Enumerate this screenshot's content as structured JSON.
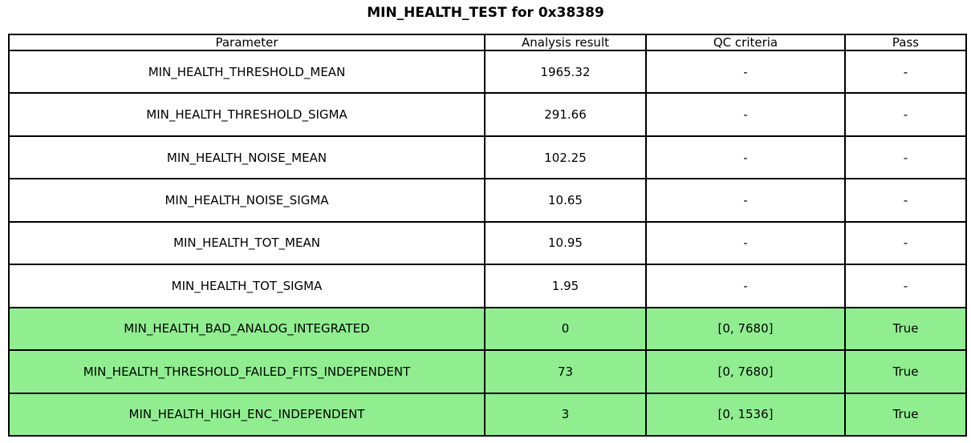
{
  "title": "MIN_HEALTH_TEST for 0x38389",
  "colors": {
    "pass_highlight": "#90EE90",
    "border": "#000000",
    "background": "#FFFFFF",
    "text": "#000000"
  },
  "chart_data": {
    "type": "table",
    "title": "MIN_HEALTH_TEST for 0x38389",
    "columns": [
      "Parameter",
      "Analysis result",
      "QC criteria",
      "Pass"
    ],
    "rows": [
      {
        "parameter": "MIN_HEALTH_THRESHOLD_MEAN",
        "analysis_result": "1965.32",
        "qc_criteria": "-",
        "pass": "-",
        "highlight": false
      },
      {
        "parameter": "MIN_HEALTH_THRESHOLD_SIGMA",
        "analysis_result": "291.66",
        "qc_criteria": "-",
        "pass": "-",
        "highlight": false
      },
      {
        "parameter": "MIN_HEALTH_NOISE_MEAN",
        "analysis_result": "102.25",
        "qc_criteria": "-",
        "pass": "-",
        "highlight": false
      },
      {
        "parameter": "MIN_HEALTH_NOISE_SIGMA",
        "analysis_result": "10.65",
        "qc_criteria": "-",
        "pass": "-",
        "highlight": false
      },
      {
        "parameter": "MIN_HEALTH_TOT_MEAN",
        "analysis_result": "10.95",
        "qc_criteria": "-",
        "pass": "-",
        "highlight": false
      },
      {
        "parameter": "MIN_HEALTH_TOT_SIGMA",
        "analysis_result": "1.95",
        "qc_criteria": "-",
        "pass": "-",
        "highlight": false
      },
      {
        "parameter": "MIN_HEALTH_BAD_ANALOG_INTEGRATED",
        "analysis_result": "0",
        "qc_criteria": "[0, 7680]",
        "pass": "True",
        "highlight": true
      },
      {
        "parameter": "MIN_HEALTH_THRESHOLD_FAILED_FITS_INDEPENDENT",
        "analysis_result": "73",
        "qc_criteria": "[0, 7680]",
        "pass": "True",
        "highlight": true
      },
      {
        "parameter": "MIN_HEALTH_HIGH_ENC_INDEPENDENT",
        "analysis_result": "3",
        "qc_criteria": "[0, 1536]",
        "pass": "True",
        "highlight": true
      }
    ],
    "highlighted_rows": [
      6,
      7,
      8
    ],
    "highlight_color": "#90EE90",
    "legend_position": "none",
    "grid": true
  }
}
